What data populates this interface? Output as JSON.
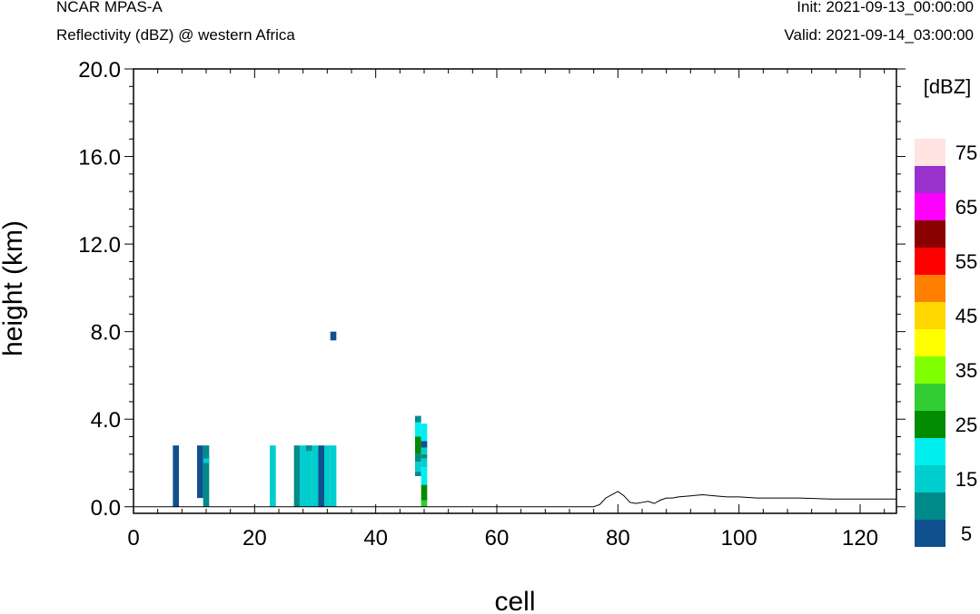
{
  "header": {
    "left_title": "NCAR MPAS-A",
    "left_subtitle": "Reflectivity (dBZ) @ western Africa",
    "right_init": "Init: 2021-09-13_00:00:00",
    "right_valid": "Valid: 2021-09-14_03:00:00"
  },
  "chart_data": {
    "type": "heatmap",
    "xlabel": "cell",
    "ylabel": "height (km)",
    "xlim": [
      0,
      126
    ],
    "ylim": [
      -0.3,
      20.0
    ],
    "x_ticks": [
      0,
      20,
      40,
      60,
      80,
      100,
      120
    ],
    "y_ticks": [
      0.0,
      4.0,
      8.0,
      12.0,
      16.0,
      20.0
    ],
    "y_tick_labels": [
      "0.0",
      "4.0",
      "8.0",
      "12.0",
      "16.0",
      "20.0"
    ],
    "grid": false,
    "colorbar": {
      "title": "[dBZ]",
      "levels": [
        5,
        10,
        15,
        20,
        25,
        30,
        35,
        40,
        45,
        50,
        55,
        60,
        65,
        70,
        75
      ],
      "labels": [
        "5",
        "15",
        "25",
        "35",
        "45",
        "55",
        "65",
        "75"
      ],
      "colors": [
        "#10508f",
        "#008b8b",
        "#00cdcd",
        "#00eeee",
        "#008b00",
        "#32cd32",
        "#7fff00",
        "#ffff00",
        "#ffd700",
        "#ff7f00",
        "#ff0000",
        "#8b0000",
        "#ff00ff",
        "#9932cc",
        "#ffe4e1"
      ]
    },
    "cells": [
      {
        "x": 7,
        "y0": 0.0,
        "y1": 2.8,
        "dbz": 5
      },
      {
        "x": 11,
        "y0": 0.4,
        "y1": 2.8,
        "dbz": 5
      },
      {
        "x": 12,
        "y0": 0.0,
        "y1": 2.8,
        "dbz": 10
      },
      {
        "x": 12,
        "y0": 2.0,
        "y1": 2.2,
        "dbz": 15
      },
      {
        "x": 23,
        "y0": 0.0,
        "y1": 2.8,
        "dbz": 15
      },
      {
        "x": 27,
        "y0": 0.0,
        "y1": 2.8,
        "dbz": 10
      },
      {
        "x": 28,
        "y0": 0.0,
        "y1": 2.8,
        "dbz": 15
      },
      {
        "x": 29,
        "y0": 0.0,
        "y1": 2.8,
        "dbz": 15
      },
      {
        "x": 29,
        "y0": 2.55,
        "y1": 2.8,
        "dbz": 10
      },
      {
        "x": 30,
        "y0": 0.0,
        "y1": 2.8,
        "dbz": 15
      },
      {
        "x": 31,
        "y0": 0.0,
        "y1": 2.8,
        "dbz": 5
      },
      {
        "x": 32,
        "y0": 0.0,
        "y1": 2.8,
        "dbz": 15
      },
      {
        "x": 33,
        "y0": 0.0,
        "y1": 2.8,
        "dbz": 15
      },
      {
        "x": 33,
        "y0": 7.6,
        "y1": 8.0,
        "dbz": 5
      },
      {
        "x": 47,
        "y0": 3.85,
        "y1": 4.15,
        "dbz": 10
      },
      {
        "x": 47,
        "y0": 3.2,
        "y1": 3.85,
        "dbz": 20
      },
      {
        "x": 47,
        "y0": 2.4,
        "y1": 3.2,
        "dbz": 25
      },
      {
        "x": 47,
        "y0": 2.05,
        "y1": 2.4,
        "dbz": 10
      },
      {
        "x": 47,
        "y0": 1.6,
        "y1": 2.05,
        "dbz": 15
      },
      {
        "x": 47,
        "y0": 1.4,
        "y1": 1.6,
        "dbz": 10
      },
      {
        "x": 48,
        "y0": 3.0,
        "y1": 3.8,
        "dbz": 20
      },
      {
        "x": 48,
        "y0": 2.7,
        "y1": 3.0,
        "dbz": 5
      },
      {
        "x": 48,
        "y0": 2.4,
        "y1": 2.7,
        "dbz": 15
      },
      {
        "x": 48,
        "y0": 2.2,
        "y1": 2.4,
        "dbz": 10
      },
      {
        "x": 48,
        "y0": 1.8,
        "y1": 2.2,
        "dbz": 15
      },
      {
        "x": 48,
        "y0": 1.0,
        "y1": 1.8,
        "dbz": 20
      },
      {
        "x": 48,
        "y0": 0.3,
        "y1": 1.0,
        "dbz": 25
      },
      {
        "x": 48,
        "y0": 0.0,
        "y1": 0.3,
        "dbz": 30
      }
    ],
    "terrain": {
      "x": [
        0,
        76,
        77,
        78,
        79,
        80,
        81,
        82,
        83,
        84,
        85,
        86,
        87,
        88,
        89,
        90,
        92,
        94,
        96,
        98,
        100,
        103,
        106,
        110,
        115,
        120,
        126
      ],
      "y": [
        0.0,
        0.0,
        0.1,
        0.4,
        0.55,
        0.7,
        0.5,
        0.2,
        0.15,
        0.2,
        0.25,
        0.15,
        0.3,
        0.4,
        0.4,
        0.45,
        0.5,
        0.55,
        0.5,
        0.45,
        0.45,
        0.4,
        0.4,
        0.4,
        0.35,
        0.35,
        0.35
      ]
    }
  }
}
